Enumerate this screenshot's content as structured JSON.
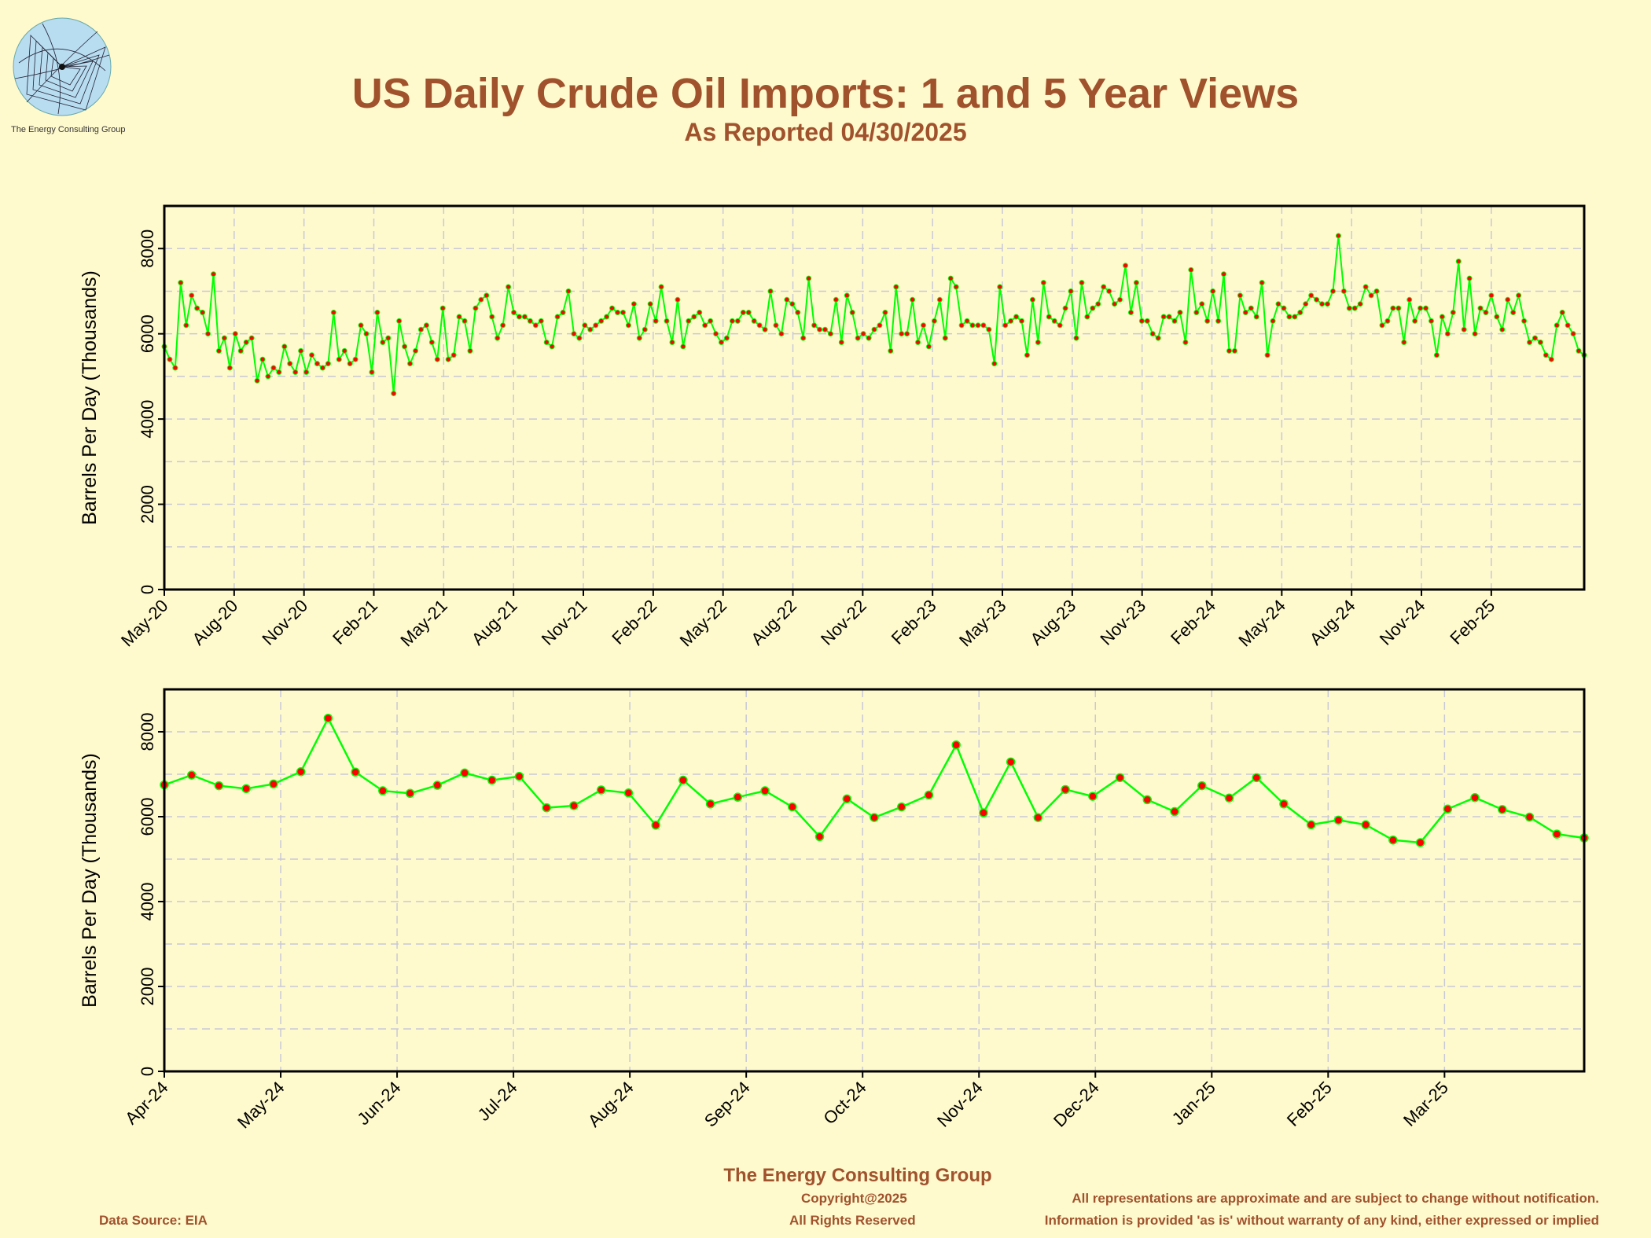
{
  "header": {
    "title": "US Daily Crude Oil Imports: 1 and 5 Year Views",
    "subtitle": "As Reported 04/30/2025",
    "logo_caption": "The Energy Consulting Group"
  },
  "footer": {
    "org": "The Energy Consulting Group",
    "copyright": "Copyright@2025",
    "rights": "All Rights Reserved",
    "source": "Data Source: EIA",
    "disclaimer_1": "All representations are approximate and are subject to change without notification.",
    "disclaimer_2": "Information is provided 'as is' without warranty of any kind, either expressed or implied"
  },
  "colors": {
    "background": "#fffacd",
    "title": "#a0522d",
    "line": "#00ff00",
    "marker": "#ff0000",
    "grid": "#c8c8d8"
  },
  "chart_data": [
    {
      "type": "line",
      "title": "",
      "ylabel": "Barrels Per Day (Thousands)",
      "ylim": [
        0,
        9000
      ],
      "yticks": [
        0,
        2000,
        4000,
        6000,
        8000
      ],
      "xticks": [
        "May-20",
        "Aug-20",
        "Nov-20",
        "Feb-21",
        "May-21",
        "Aug-21",
        "Nov-21",
        "Feb-22",
        "May-22",
        "Aug-22",
        "Nov-22",
        "Feb-23",
        "May-23",
        "Aug-23",
        "Nov-23",
        "Feb-24",
        "May-24",
        "Aug-24",
        "Nov-24",
        "Feb-25"
      ],
      "x_start": "May-20",
      "x_end": "Apr-25",
      "grid": true,
      "series": [
        {
          "values": [
            5700,
            5400,
            5200,
            7200,
            6200,
            6900,
            6600,
            6500,
            6000,
            7400,
            5600,
            5900,
            5200,
            6000,
            5600,
            5800,
            5900,
            4900,
            5400,
            5000,
            5200,
            5100,
            5700,
            5300,
            5100,
            5600,
            5100,
            5500,
            5300,
            5200,
            5300,
            6500,
            5400,
            5600,
            5300,
            5400,
            6200,
            6000,
            5100,
            6500,
            5800,
            5900,
            4600,
            6300,
            5700,
            5300,
            5600,
            6100,
            6200,
            5800,
            5400,
            6600,
            5400,
            5500,
            6400,
            6300,
            5600,
            6600,
            6800,
            6900,
            6400,
            5900,
            6200,
            7100,
            6500,
            6400,
            6400,
            6300,
            6200,
            6300,
            5800,
            5700,
            6400,
            6500,
            7000,
            6000,
            5900,
            6200,
            6100,
            6200,
            6300,
            6400,
            6600,
            6500,
            6500,
            6200,
            6700,
            5900,
            6100,
            6700,
            6300,
            7100,
            6300,
            5800,
            6800,
            5700,
            6300,
            6400,
            6500,
            6200,
            6300,
            6000,
            5800,
            5900,
            6300,
            6300,
            6500,
            6500,
            6300,
            6200,
            6100,
            7000,
            6200,
            6000,
            6800,
            6700,
            6500,
            5900,
            7300,
            6200,
            6100,
            6100,
            6000,
            6800,
            5800,
            6900,
            6500,
            5900,
            6000,
            5900,
            6100,
            6200,
            6500,
            5600,
            7100,
            6000,
            6000,
            6800,
            5800,
            6200,
            5700,
            6300,
            6800,
            5900,
            7300,
            7100,
            6200,
            6300,
            6200,
            6200,
            6200,
            6100,
            5300,
            7100,
            6200,
            6300,
            6400,
            6300,
            5500,
            6800,
            5800,
            7200,
            6400,
            6300,
            6200,
            6600,
            7000,
            5900,
            7200,
            6400,
            6600,
            6700,
            7100,
            7000,
            6700,
            6800,
            7600,
            6500,
            7200,
            6300,
            6300,
            6000,
            5900,
            6400,
            6400,
            6300,
            6500,
            5800,
            7500,
            6500,
            6700,
            6300,
            7000,
            6300,
            7400,
            5600,
            5600,
            6900,
            6500,
            6600,
            6400,
            7200,
            5500,
            6300,
            6700,
            6600,
            6400,
            6400,
            6500,
            6700,
            6900,
            6800,
            6700,
            6700,
            7000,
            8300,
            7000,
            6600,
            6600,
            6700,
            7100,
            6900,
            7000,
            6200,
            6300,
            6600,
            6600,
            5800,
            6800,
            6300,
            6600,
            6600,
            6300,
            5500,
            6400,
            6000,
            6500,
            7700,
            6100,
            7300,
            6000,
            6600,
            6500,
            6900,
            6400,
            6100,
            6800,
            6500,
            6900,
            6300,
            5800,
            5900,
            5800,
            5500,
            5400,
            6200,
            6500,
            6200,
            6000,
            5600,
            5500
          ]
        }
      ]
    },
    {
      "type": "line",
      "title": "",
      "ylabel": "Barrels Per Day (Thousands)",
      "ylim": [
        0,
        9000
      ],
      "yticks": [
        0,
        2000,
        4000,
        6000,
        8000
      ],
      "xticks": [
        "Apr-24",
        "May-24",
        "Jun-24",
        "Jul-24",
        "Aug-24",
        "Sep-24",
        "Oct-24",
        "Nov-24",
        "Dec-24",
        "Jan-25",
        "Feb-25",
        "Mar-25"
      ],
      "x_start": "Apr-24",
      "x_end": "Apr-25",
      "grid": true,
      "series": [
        {
          "values": [
            6750,
            6980,
            6730,
            6660,
            6770,
            7060,
            8320,
            7050,
            6610,
            6550,
            6740,
            7030,
            6860,
            6950,
            6210,
            6260,
            6630,
            6560,
            5800,
            6860,
            6300,
            6460,
            6610,
            6230,
            5530,
            6420,
            5980,
            6230,
            6510,
            7690,
            6090,
            7290,
            5980,
            6640,
            6480,
            6920,
            6400,
            6120,
            6730,
            6440,
            6920,
            6300,
            5810,
            5920,
            5810,
            5450,
            5390,
            6180,
            6450,
            6170,
            5990,
            5590,
            5500
          ]
        }
      ]
    }
  ]
}
